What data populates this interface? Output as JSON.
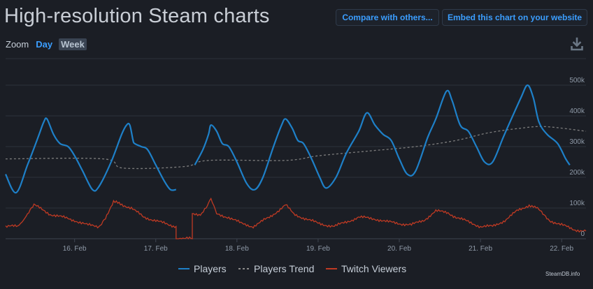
{
  "page_title": "High-resolution Steam charts",
  "buttons": {
    "compare": "Compare with others...",
    "embed": "Embed this chart on your website"
  },
  "zoom": {
    "label": "Zoom",
    "day": "Day",
    "week": "Week",
    "selected": "Week"
  },
  "credit": "SteamDB.info",
  "colors": {
    "players": "#1e80c8",
    "trend": "#7d7d7d",
    "twitch": "#c03a23",
    "accent": "#3b9eff"
  },
  "chart_data": {
    "type": "line",
    "x_tick_labels": [
      "16. Feb",
      "17. Feb",
      "18. Feb",
      "19. Feb",
      "20. Feb",
      "21. Feb",
      "22. Feb"
    ],
    "y_tick_labels": [
      "0",
      "100k",
      "200k",
      "300k",
      "400k",
      "500k"
    ],
    "ylim": [
      0,
      500000
    ],
    "xlim_days": [
      15.15,
      22.3
    ],
    "x_unit": "day of February",
    "legend_position": "bottom",
    "series": [
      {
        "name": "Players",
        "style": "solid",
        "points": [
          [
            15.15,
            210000
          ],
          [
            15.28,
            150000
          ],
          [
            15.42,
            240000
          ],
          [
            15.55,
            330000
          ],
          [
            15.62,
            380000
          ],
          [
            15.66,
            390000
          ],
          [
            15.74,
            340000
          ],
          [
            15.82,
            310000
          ],
          [
            15.92,
            300000
          ],
          [
            16.0,
            270000
          ],
          [
            16.1,
            220000
          ],
          [
            16.22,
            160000
          ],
          [
            16.3,
            170000
          ],
          [
            16.45,
            250000
          ],
          [
            16.58,
            340000
          ],
          [
            16.64,
            370000
          ],
          [
            16.68,
            370000
          ],
          [
            16.72,
            320000
          ],
          [
            16.74,
            310000
          ],
          [
            16.82,
            300000
          ],
          [
            16.9,
            290000
          ],
          [
            17.0,
            240000
          ],
          [
            17.1,
            190000
          ],
          [
            17.18,
            160000
          ],
          [
            17.25,
            160000
          ]
        ],
        "points_segment_2": [
          [
            17.48,
            240000
          ],
          [
            17.58,
            290000
          ],
          [
            17.65,
            340000
          ],
          [
            17.68,
            370000
          ],
          [
            17.75,
            350000
          ],
          [
            17.82,
            310000
          ],
          [
            17.9,
            300000
          ],
          [
            18.0,
            250000
          ],
          [
            18.12,
            180000
          ],
          [
            18.22,
            160000
          ],
          [
            18.32,
            200000
          ],
          [
            18.45,
            300000
          ],
          [
            18.55,
            370000
          ],
          [
            18.6,
            390000
          ],
          [
            18.68,
            360000
          ],
          [
            18.75,
            320000
          ],
          [
            18.82,
            310000
          ],
          [
            18.92,
            260000
          ],
          [
            19.02,
            200000
          ],
          [
            19.1,
            165000
          ],
          [
            19.22,
            200000
          ],
          [
            19.35,
            280000
          ],
          [
            19.5,
            350000
          ],
          [
            19.6,
            410000
          ],
          [
            19.7,
            370000
          ],
          [
            19.8,
            340000
          ],
          [
            19.9,
            320000
          ],
          [
            20.0,
            260000
          ],
          [
            20.1,
            210000
          ],
          [
            20.2,
            220000
          ],
          [
            20.35,
            330000
          ],
          [
            20.45,
            390000
          ],
          [
            20.58,
            480000
          ],
          [
            20.65,
            450000
          ],
          [
            20.75,
            370000
          ],
          [
            20.85,
            350000
          ],
          [
            20.95,
            300000
          ],
          [
            21.05,
            250000
          ],
          [
            21.15,
            250000
          ],
          [
            21.28,
            330000
          ],
          [
            21.38,
            390000
          ],
          [
            21.5,
            460000
          ],
          [
            21.58,
            500000
          ],
          [
            21.65,
            460000
          ],
          [
            21.72,
            380000
          ],
          [
            21.82,
            340000
          ],
          [
            21.95,
            310000
          ],
          [
            22.05,
            260000
          ],
          [
            22.1,
            240000
          ]
        ]
      },
      {
        "name": "Players Trend",
        "style": "dashed",
        "points": [
          [
            15.15,
            260000
          ],
          [
            16.35,
            260000
          ],
          [
            16.6,
            230000
          ],
          [
            17.35,
            235000
          ],
          [
            17.65,
            255000
          ],
          [
            18.6,
            255000
          ],
          [
            19.0,
            270000
          ],
          [
            19.6,
            285000
          ],
          [
            20.2,
            300000
          ],
          [
            20.7,
            320000
          ],
          [
            21.1,
            345000
          ],
          [
            21.5,
            360000
          ],
          [
            21.8,
            365000
          ],
          [
            22.3,
            350000
          ]
        ]
      },
      {
        "name": "Twitch Viewers",
        "style": "solid",
        "points": [
          [
            15.15,
            40000
          ],
          [
            15.3,
            40000
          ],
          [
            15.42,
            80000
          ],
          [
            15.5,
            110000
          ],
          [
            15.6,
            95000
          ],
          [
            15.7,
            80000
          ],
          [
            15.85,
            70000
          ],
          [
            16.0,
            60000
          ],
          [
            16.15,
            45000
          ],
          [
            16.3,
            40000
          ],
          [
            16.38,
            70000
          ],
          [
            16.48,
            120000
          ],
          [
            16.6,
            110000
          ],
          [
            16.7,
            100000
          ],
          [
            16.85,
            70000
          ],
          [
            17.0,
            60000
          ],
          [
            17.15,
            45000
          ],
          [
            17.25,
            40000
          ],
          [
            17.25,
            0
          ],
          [
            17.45,
            0
          ],
          [
            17.45,
            80000
          ],
          [
            17.55,
            80000
          ],
          [
            17.62,
            100000
          ],
          [
            17.68,
            130000
          ],
          [
            17.75,
            80000
          ],
          [
            17.9,
            70000
          ],
          [
            18.05,
            50000
          ],
          [
            18.2,
            40000
          ],
          [
            18.4,
            70000
          ],
          [
            18.5,
            90000
          ],
          [
            18.6,
            110000
          ],
          [
            18.7,
            80000
          ],
          [
            18.85,
            65000
          ],
          [
            19.0,
            50000
          ],
          [
            19.2,
            40000
          ],
          [
            19.35,
            55000
          ],
          [
            19.5,
            70000
          ],
          [
            19.7,
            65000
          ],
          [
            19.85,
            55000
          ],
          [
            20.0,
            50000
          ],
          [
            20.15,
            45000
          ],
          [
            20.3,
            60000
          ],
          [
            20.45,
            90000
          ],
          [
            20.6,
            85000
          ],
          [
            20.7,
            70000
          ],
          [
            20.85,
            55000
          ],
          [
            21.0,
            40000
          ],
          [
            21.15,
            40000
          ],
          [
            21.3,
            60000
          ],
          [
            21.45,
            90000
          ],
          [
            21.6,
            110000
          ],
          [
            21.72,
            95000
          ],
          [
            21.85,
            60000
          ],
          [
            22.0,
            45000
          ],
          [
            22.15,
            30000
          ],
          [
            22.3,
            25000
          ]
        ]
      }
    ]
  }
}
